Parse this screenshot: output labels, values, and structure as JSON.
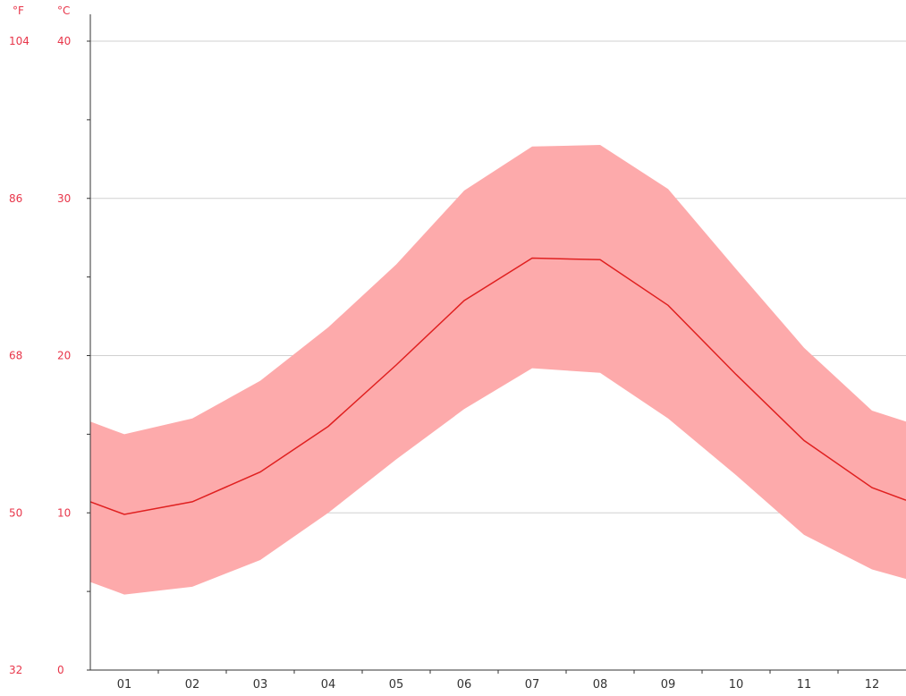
{
  "chart_data": {
    "type": "area",
    "y_units": {
      "fahrenheit": "°F",
      "celsius": "°C"
    },
    "y_ticks_celsius": [
      "40",
      "30",
      "20",
      "10",
      "0"
    ],
    "y_ticks_fahrenheit": [
      "104",
      "86",
      "68",
      "50",
      "32"
    ],
    "ylim": [
      0,
      40
    ],
    "x_tick_labels": [
      "01",
      "02",
      "03",
      "04",
      "05",
      "06",
      "07",
      "08",
      "09",
      "10",
      "11",
      "12"
    ],
    "grid": true,
    "colors": {
      "band": "#fdaaab",
      "mean_line": "#e02020",
      "axis_text": "#e8364a"
    },
    "series": [
      {
        "role": "mean",
        "x": [
          0.5,
          1,
          2,
          3,
          4,
          5,
          6,
          7,
          8,
          9,
          10,
          11,
          12,
          12.5
        ],
        "values": [
          10.7,
          9.9,
          10.7,
          12.6,
          15.5,
          19.4,
          23.5,
          26.2,
          26.1,
          23.2,
          18.8,
          14.6,
          11.6,
          10.8
        ]
      },
      {
        "role": "max",
        "x": [
          0.5,
          1,
          2,
          3,
          4,
          5,
          6,
          7,
          8,
          9,
          10,
          11,
          12,
          12.5
        ],
        "values": [
          15.8,
          15.0,
          16.0,
          18.4,
          21.8,
          25.8,
          30.5,
          33.3,
          33.4,
          30.6,
          25.5,
          20.5,
          16.5,
          15.8
        ]
      },
      {
        "role": "min",
        "x": [
          0.5,
          1,
          2,
          3,
          4,
          5,
          6,
          7,
          8,
          9,
          10,
          11,
          12,
          12.5
        ],
        "values": [
          5.6,
          4.8,
          5.3,
          7.0,
          10.0,
          13.4,
          16.6,
          19.2,
          18.9,
          16.0,
          12.4,
          8.6,
          6.4,
          5.8
        ]
      }
    ]
  }
}
